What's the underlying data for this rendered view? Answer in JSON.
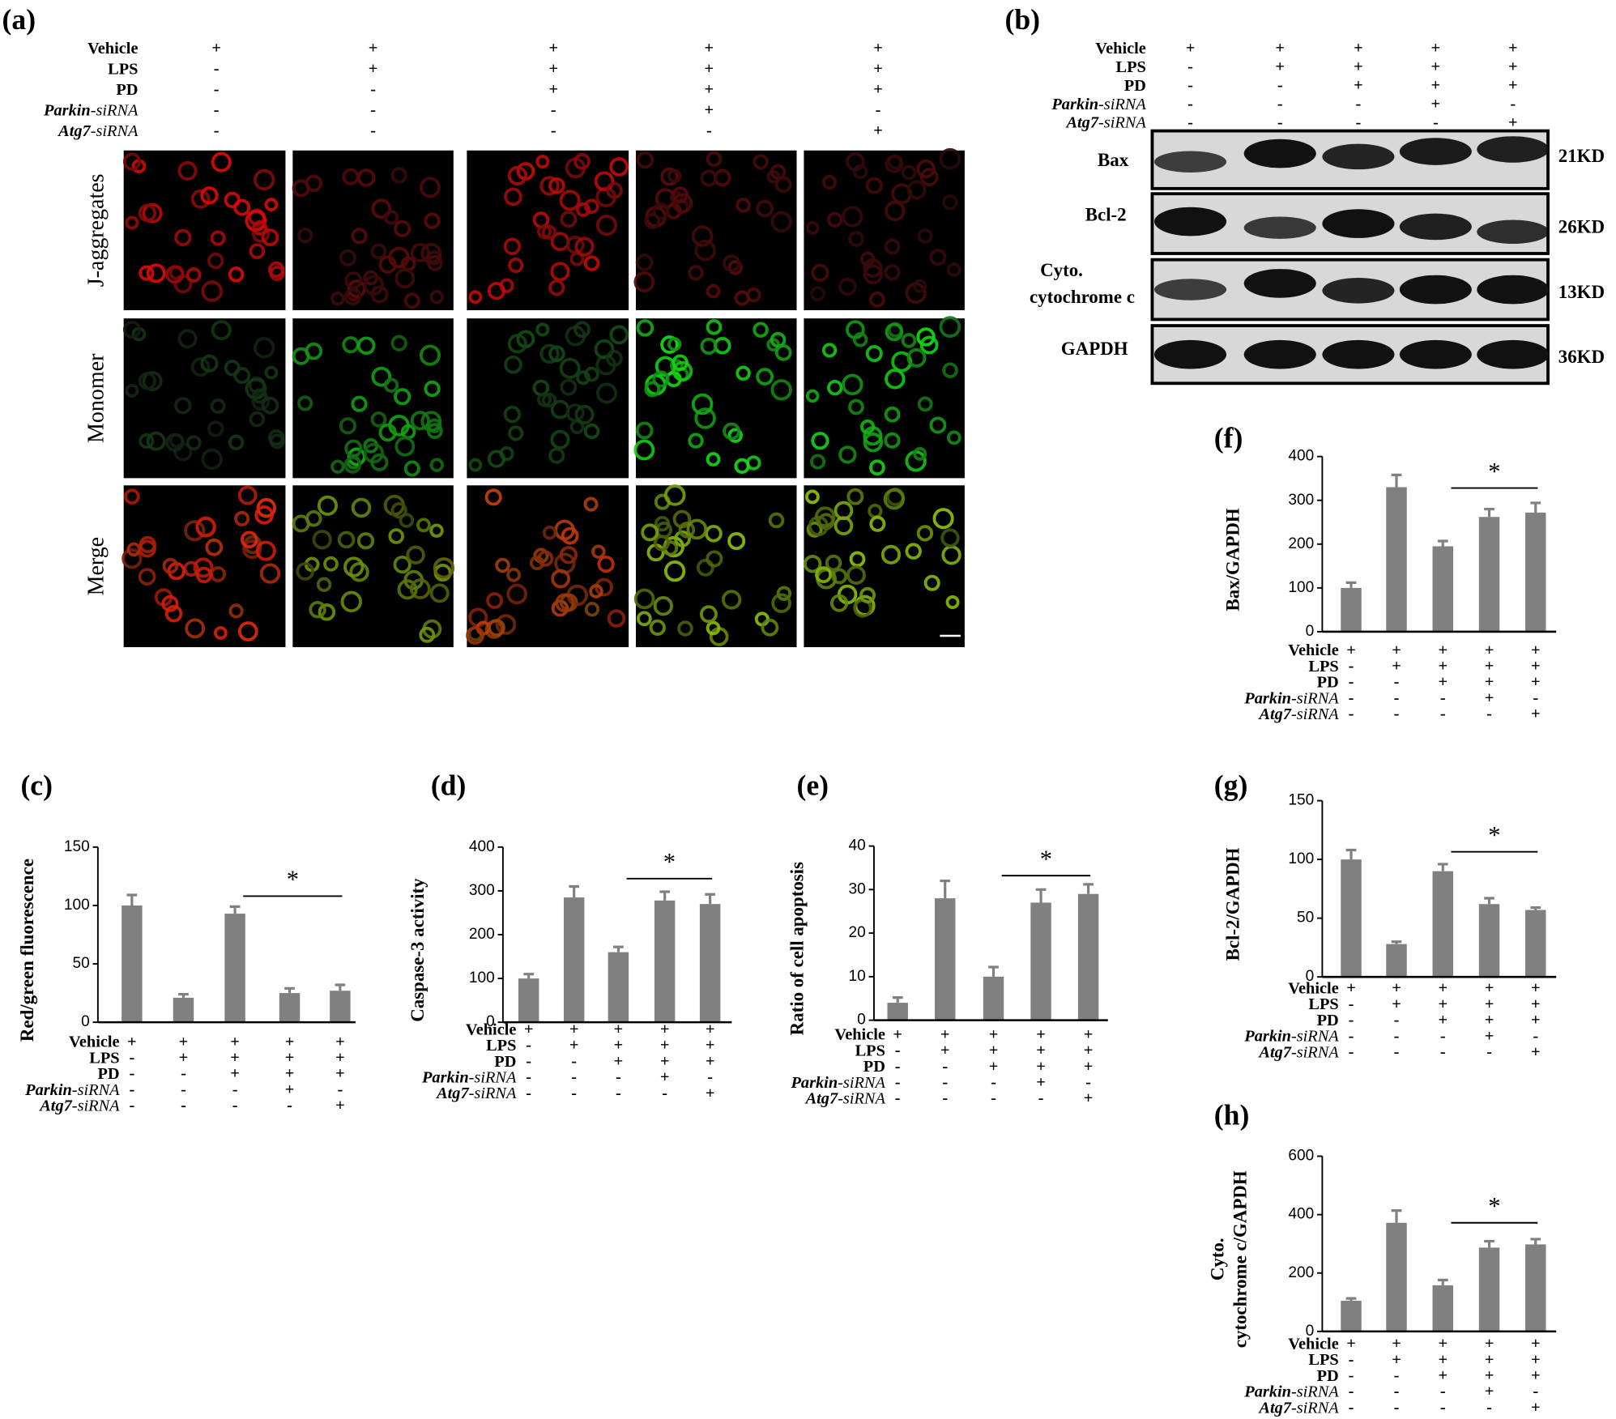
{
  "panel_a": {
    "label": "(a)",
    "row_labels": [
      "J-aggregates",
      "Monomer",
      "Merge"
    ],
    "conditions": [
      {
        "label": "Vehicle",
        "signs": [
          "+",
          "+",
          "+",
          "+",
          "+"
        ]
      },
      {
        "label": "LPS",
        "signs": [
          "-",
          "+",
          "+",
          "+",
          "+"
        ]
      },
      {
        "label": "PD",
        "signs": [
          "-",
          "-",
          "+",
          "+",
          "+"
        ]
      },
      {
        "gene": "Parkin",
        "suffix": "-siRNA",
        "signs": [
          "-",
          "-",
          "-",
          "+",
          "-"
        ]
      },
      {
        "gene": "Atg7",
        "suffix": "-siRNA",
        "signs": [
          "-",
          "-",
          "-",
          "-",
          "+"
        ]
      }
    ]
  },
  "panel_b": {
    "label": "(b)",
    "conditions": [
      {
        "label": "Vehicle",
        "signs": [
          "+",
          "+",
          "+",
          "+",
          "+"
        ]
      },
      {
        "label": "LPS",
        "signs": [
          "-",
          "+",
          "+",
          "+",
          "+"
        ]
      },
      {
        "label": "PD",
        "signs": [
          "-",
          "-",
          "+",
          "+",
          "+"
        ]
      },
      {
        "gene": "Parkin",
        "suffix": "-siRNA",
        "signs": [
          "-",
          "-",
          "-",
          "+",
          "-"
        ]
      },
      {
        "gene": "Atg7",
        "suffix": "-siRNA",
        "signs": [
          "-",
          "-",
          "-",
          "-",
          "+"
        ]
      }
    ],
    "blots": [
      {
        "name": [
          "Bax"
        ],
        "size": "21KD"
      },
      {
        "name": [
          "Bcl-2"
        ],
        "size": "26KD"
      },
      {
        "name": [
          "Cyto.",
          "cytochrome c"
        ],
        "size": "13KD"
      },
      {
        "name": [
          "GAPDH"
        ],
        "size": "36KD"
      }
    ]
  },
  "chart_data": [
    {
      "type": "bar",
      "panel_label": "(c)",
      "ylabel": [
        "Red/green fluorescence"
      ],
      "ylim": [
        0,
        150
      ],
      "yticks": [
        0,
        50,
        100,
        150
      ],
      "color": "#808080",
      "values": [
        100,
        21,
        93,
        25,
        27
      ],
      "errors": [
        9,
        3,
        6,
        4,
        5
      ],
      "significance": "*",
      "conditions": [
        {
          "label": "Vehicle",
          "signs": [
            "+",
            "+",
            "+",
            "+",
            "+"
          ]
        },
        {
          "label": "LPS",
          "signs": [
            "-",
            "+",
            "+",
            "+",
            "+"
          ]
        },
        {
          "label": "PD",
          "signs": [
            "-",
            "-",
            "+",
            "+",
            "+"
          ]
        },
        {
          "gene": "Parkin",
          "suffix": "-siRNA",
          "signs": [
            "-",
            "-",
            "-",
            "+",
            "-"
          ]
        },
        {
          "gene": "Atg7",
          "suffix": "-siRNA",
          "signs": [
            "-",
            "-",
            "-",
            "-",
            "+"
          ]
        }
      ]
    },
    {
      "type": "bar",
      "panel_label": "(d)",
      "ylabel": [
        "Caspase-3 activity"
      ],
      "ylim": [
        0,
        400
      ],
      "yticks": [
        0,
        100,
        200,
        300,
        400
      ],
      "color": "#808080",
      "values": [
        100,
        285,
        160,
        278,
        270
      ],
      "errors": [
        10,
        25,
        12,
        20,
        22
      ],
      "significance": "*",
      "conditions": [
        {
          "label": "Vehicle",
          "signs": [
            "+",
            "+",
            "+",
            "+",
            "+"
          ]
        },
        {
          "label": "LPS",
          "signs": [
            "-",
            "+",
            "+",
            "+",
            "+"
          ]
        },
        {
          "label": "PD",
          "signs": [
            "-",
            "-",
            "+",
            "+",
            "+"
          ]
        },
        {
          "gene": "Parkin",
          "suffix": "-siRNA",
          "signs": [
            "-",
            "-",
            "-",
            "+",
            "-"
          ]
        },
        {
          "gene": "Atg7",
          "suffix": "-siRNA",
          "signs": [
            "-",
            "-",
            "-",
            "-",
            "+"
          ]
        }
      ]
    },
    {
      "type": "bar",
      "panel_label": "(e)",
      "ylabel": [
        "Ratio of cell apoptosis"
      ],
      "ylim": [
        0,
        40
      ],
      "yticks": [
        0,
        10,
        20,
        30,
        40
      ],
      "color": "#808080",
      "values": [
        4,
        28,
        10,
        27,
        29
      ],
      "errors": [
        1.2,
        4,
        2.2,
        3,
        2.2
      ],
      "significance": "*",
      "conditions": [
        {
          "label": "Vehicle",
          "signs": [
            "+",
            "+",
            "+",
            "+",
            "+"
          ]
        },
        {
          "label": "LPS",
          "signs": [
            "-",
            "+",
            "+",
            "+",
            "+"
          ]
        },
        {
          "label": "PD",
          "signs": [
            "-",
            "-",
            "+",
            "+",
            "+"
          ]
        },
        {
          "gene": "Parkin",
          "suffix": "-siRNA",
          "signs": [
            "-",
            "-",
            "-",
            "+",
            "-"
          ]
        },
        {
          "gene": "Atg7",
          "suffix": "-siRNA",
          "signs": [
            "-",
            "-",
            "-",
            "-",
            "+"
          ]
        }
      ]
    },
    {
      "type": "bar",
      "panel_label": "(f)",
      "ylabel": [
        "Bax/GAPDH"
      ],
      "ylim": [
        0,
        400
      ],
      "yticks": [
        0,
        100,
        200,
        300,
        400
      ],
      "color": "#808080",
      "values": [
        100,
        330,
        195,
        262,
        272
      ],
      "errors": [
        12,
        28,
        12,
        18,
        22
      ],
      "significance": "*",
      "conditions": [
        {
          "label": "Vehicle",
          "signs": [
            "+",
            "+",
            "+",
            "+",
            "+"
          ]
        },
        {
          "label": "LPS",
          "signs": [
            "-",
            "+",
            "+",
            "+",
            "+"
          ]
        },
        {
          "label": "PD",
          "signs": [
            "-",
            "-",
            "+",
            "+",
            "+"
          ]
        },
        {
          "gene": "Parkin",
          "suffix": "-siRNA",
          "signs": [
            "-",
            "-",
            "-",
            "+",
            "-"
          ]
        },
        {
          "gene": "Atg7",
          "suffix": "-siRNA",
          "signs": [
            "-",
            "-",
            "-",
            "-",
            "+"
          ]
        }
      ]
    },
    {
      "type": "bar",
      "panel_label": "(g)",
      "ylabel": [
        "Bcl-2/GAPDH"
      ],
      "ylim": [
        0,
        150
      ],
      "yticks": [
        0,
        50,
        100,
        150
      ],
      "color": "#808080",
      "values": [
        100,
        28,
        90,
        62,
        57
      ],
      "errors": [
        8,
        2,
        6,
        5,
        2
      ],
      "significance": "*",
      "conditions": [
        {
          "label": "Vehicle",
          "signs": [
            "+",
            "+",
            "+",
            "+",
            "+"
          ]
        },
        {
          "label": "LPS",
          "signs": [
            "-",
            "+",
            "+",
            "+",
            "+"
          ]
        },
        {
          "label": "PD",
          "signs": [
            "-",
            "-",
            "+",
            "+",
            "+"
          ]
        },
        {
          "gene": "Parkin",
          "suffix": "-siRNA",
          "signs": [
            "-",
            "-",
            "-",
            "+",
            "-"
          ]
        },
        {
          "gene": "Atg7",
          "suffix": "-siRNA",
          "signs": [
            "-",
            "-",
            "-",
            "-",
            "+"
          ]
        }
      ]
    },
    {
      "type": "bar",
      "panel_label": "(h)",
      "ylabel": [
        "Cyto.",
        "cytochrome c/GAPDH"
      ],
      "ylim": [
        0,
        600
      ],
      "yticks": [
        0,
        200,
        400,
        600
      ],
      "color": "#808080",
      "values": [
        105,
        372,
        158,
        287,
        298
      ],
      "errors": [
        8,
        42,
        18,
        22,
        18
      ],
      "significance": "*",
      "conditions": [
        {
          "label": "Vehicle",
          "signs": [
            "+",
            "+",
            "+",
            "+",
            "+"
          ]
        },
        {
          "label": "LPS",
          "signs": [
            "-",
            "+",
            "+",
            "+",
            "+"
          ]
        },
        {
          "label": "PD",
          "signs": [
            "-",
            "-",
            "+",
            "+",
            "+"
          ]
        },
        {
          "gene": "Parkin",
          "suffix": "-siRNA",
          "signs": [
            "-",
            "-",
            "-",
            "+",
            "-"
          ]
        },
        {
          "gene": "Atg7",
          "suffix": "-siRNA",
          "signs": [
            "-",
            "-",
            "-",
            "-",
            "+"
          ]
        }
      ]
    }
  ]
}
